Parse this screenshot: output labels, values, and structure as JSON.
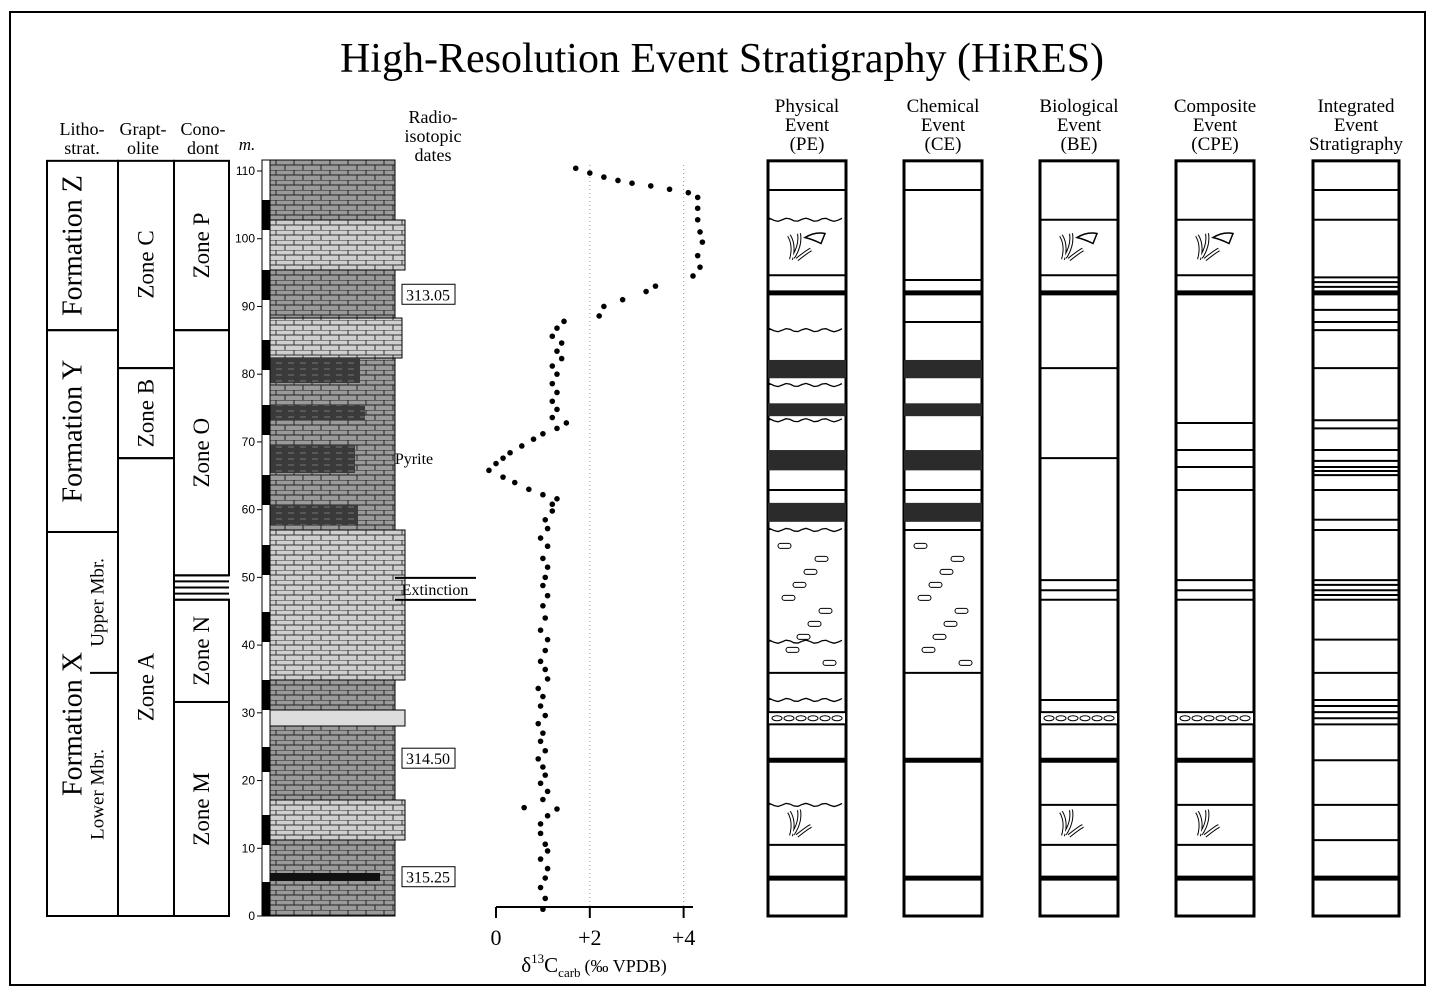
{
  "title": "High-Resolution Event Stratigraphy (HiRES)",
  "depth_axis": {
    "unit": "m.",
    "lim": [
      0,
      110
    ],
    "ticks": [
      0,
      10,
      20,
      30,
      40,
      50,
      60,
      70,
      80,
      90,
      100,
      110
    ],
    "section_top": 111.5
  },
  "lithostrat": {
    "header": [
      "Litho-",
      "strat."
    ],
    "units": [
      {
        "label": "Formation Z",
        "top": 111.5,
        "base": 86.5
      },
      {
        "label": "Formation Y",
        "top": 86.5,
        "base": 56.7
      },
      {
        "label": "Formation X",
        "top": 56.7,
        "base": 0,
        "members": [
          {
            "label": "Upper Mbr.",
            "top": 56.7,
            "base": 35.9
          },
          {
            "label": "Lower Mbr.",
            "top": 35.9,
            "base": 0
          }
        ]
      }
    ]
  },
  "graptolite": {
    "header": [
      "Grapt-",
      "olite"
    ],
    "zones": [
      {
        "label": "Zone C",
        "top": 111.5,
        "base": 80.9
      },
      {
        "label": "Zone B",
        "top": 80.9,
        "base": 67.6
      },
      {
        "label": "Zone A",
        "top": 67.6,
        "base": 0
      }
    ]
  },
  "conodont": {
    "header": [
      "Cono-",
      "dont"
    ],
    "zones": [
      {
        "label": "Zone P",
        "top": 111.5,
        "base": 86.5
      },
      {
        "label": "Zone O",
        "top": 86.5,
        "base": 50.3
      },
      {
        "label": "Zone N",
        "top": 46.7,
        "base": 31.6
      },
      {
        "label": "Zone M",
        "top": 31.6,
        "base": 0
      }
    ],
    "boundary_lines": [
      50.3,
      49.4,
      48.5,
      47.6,
      46.7
    ]
  },
  "radioisotopic_dates": {
    "header": [
      "Radio-",
      "isotopic",
      "dates"
    ],
    "dates": [
      {
        "label": "313.05",
        "depth": 91.8
      },
      {
        "label": "314.50",
        "depth": 23.3
      },
      {
        "label": "315.25",
        "depth": 5.8
      }
    ]
  },
  "annotations": [
    {
      "label": "Pyrite",
      "depth": 67.5
    },
    {
      "label": "Extinction",
      "depth": 48.3
    }
  ],
  "d13c": {
    "label": {
      "delta": "δ",
      "sup": "13",
      "main": "C",
      "sub": "carb",
      "units": "(‰ VPDB)"
    },
    "xlim": [
      0,
      4.2
    ],
    "xticks": [
      0,
      {
        "value": 2,
        "label": "+2"
      },
      {
        "value": 4,
        "label": "+4"
      }
    ],
    "grid": true,
    "depths": [
      110.4,
      109.7,
      109.1,
      108.6,
      108.2,
      107.8,
      107.3,
      106.8,
      106.1,
      104.5,
      102.8,
      101.0,
      99.5,
      97.5,
      95.8,
      94.5,
      93.0,
      92.2,
      91.0,
      90.0,
      88.6,
      87.8,
      86.8,
      85.6,
      84.6,
      83.4,
      82.3,
      81.2,
      80.0,
      78.6,
      77.3,
      76.0,
      74.8,
      73.6,
      72.8,
      72.0,
      71.2,
      70.4,
      69.4,
      68.4,
      67.6,
      66.8,
      65.8,
      64.8,
      64.0,
      63.0,
      62.2,
      61.6,
      60.8,
      59.8,
      58.5,
      57.2,
      55.8,
      54.6,
      52.8,
      51.5,
      50.0,
      48.8,
      47.3,
      45.8,
      44.0,
      42.2,
      40.8,
      39.2,
      37.6,
      36.4,
      35.0,
      33.6,
      32.4,
      31.0,
      29.6,
      28.4,
      27.0,
      25.8,
      24.4,
      23.2,
      22.0,
      20.8,
      19.6,
      18.4,
      17.2,
      16.0,
      15.8,
      14.8,
      13.6,
      12.2,
      10.6,
      9.6,
      8.4,
      7.0,
      5.6,
      4.2,
      2.6,
      1.0
    ],
    "values": [
      1.7,
      2.0,
      2.3,
      2.6,
      2.9,
      3.3,
      3.7,
      4.1,
      4.3,
      4.3,
      4.3,
      4.35,
      4.4,
      4.3,
      4.35,
      4.2,
      3.4,
      3.2,
      2.7,
      2.3,
      2.2,
      1.45,
      1.3,
      1.2,
      1.4,
      1.3,
      1.4,
      1.2,
      1.3,
      1.2,
      1.3,
      1.2,
      1.3,
      1.2,
      1.5,
      1.3,
      1.0,
      0.8,
      0.55,
      0.3,
      0.15,
      0.0,
      -0.15,
      0.15,
      0.4,
      0.7,
      1.0,
      1.3,
      1.2,
      1.2,
      1.05,
      1.1,
      0.95,
      1.1,
      1.0,
      1.1,
      1.05,
      1.0,
      1.1,
      1.0,
      1.05,
      0.95,
      1.1,
      1.05,
      0.95,
      1.05,
      1.1,
      0.9,
      1.0,
      0.95,
      1.05,
      0.9,
      1.0,
      0.95,
      1.05,
      0.9,
      1.0,
      1.05,
      0.95,
      1.1,
      1.0,
      0.6,
      1.3,
      1.1,
      0.95,
      0.95,
      1.05,
      1.1,
      0.95,
      1.1,
      1.05,
      0.95,
      1.05,
      1.0
    ]
  },
  "event_columns": [
    {
      "header": [
        "Physical",
        "Event",
        "(PE)"
      ],
      "lines": [
        107.2,
        94.6,
        62.9,
        35.9,
        10.5
      ],
      "thick": [
        92.0,
        23.0,
        5.6
      ],
      "wavy": [
        102.8,
        86.5,
        78.4,
        73.2,
        57.0,
        40.5,
        31.9,
        16.4
      ],
      "bands": [
        [
          82.1,
          79.4
        ],
        [
          75.7,
          73.8
        ],
        [
          68.8,
          65.8
        ],
        [
          61.0,
          58.2
        ]
      ],
      "clast_zone": [
        56.2,
        36.3
      ],
      "clast_beds": [
        [
          30.1,
          28.3
        ]
      ],
      "fossils": [
        99.0,
        13.9
      ],
      "horn_fossils": [
        99.0
      ]
    },
    {
      "header": [
        "Chemical",
        "Event",
        "(CE)"
      ],
      "lines": [
        107.2,
        93.9,
        87.7,
        62.9,
        57.0,
        35.9
      ],
      "thick": [
        92.0,
        23.0,
        5.6
      ],
      "wavy": [],
      "bands": [
        [
          82.1,
          79.4
        ],
        [
          75.7,
          73.8
        ],
        [
          68.8,
          65.8
        ],
        [
          61.0,
          58.2
        ]
      ],
      "clast_zone": [
        56.2,
        36.3
      ],
      "clast_beds": [],
      "fossils": [],
      "horn_fossils": []
    },
    {
      "header": [
        "Biological",
        "Event",
        "(BE)"
      ],
      "lines": [
        102.8,
        94.6,
        80.9,
        67.6,
        49.6,
        48.1,
        46.7,
        31.9,
        16.4,
        10.5
      ],
      "thick": [
        92.0,
        23.0,
        5.6
      ],
      "wavy": [],
      "bands": [],
      "clast_zone": [],
      "clast_beds": [
        [
          30.1,
          28.3
        ]
      ],
      "fossils": [
        99.0,
        13.9
      ],
      "horn_fossils": [
        99.0
      ]
    },
    {
      "header": [
        "Composite",
        "Event",
        "(CPE)"
      ],
      "lines": [
        102.8,
        94.6,
        72.8,
        68.8,
        66.3,
        62.9,
        49.6,
        48.1,
        46.7,
        16.4,
        10.5
      ],
      "thick": [
        92.0,
        23.0,
        5.6
      ],
      "wavy": [],
      "bands": [],
      "clast_zone": [],
      "clast_beds": [
        [
          30.1,
          28.3
        ]
      ],
      "fossils": [
        99.0,
        13.9
      ],
      "horn_fossils": [
        99.0
      ]
    },
    {
      "header": [
        "Integrated",
        "Event",
        "Stratigraphy"
      ],
      "lines": [
        107.2,
        102.8,
        94.3,
        93.6,
        92.9,
        89.5,
        87.7,
        86.5,
        80.9,
        73.2,
        72.0,
        68.8,
        67.2,
        66.3,
        65.7,
        65.1,
        62.9,
        58.5,
        57.0,
        49.6,
        48.9,
        48.1,
        47.4,
        46.7,
        40.8,
        35.9,
        31.9,
        31.0,
        30.1,
        29.2,
        28.3,
        23.0,
        16.4,
        11.2
      ],
      "thick": [
        92.0,
        5.6
      ],
      "wavy": [],
      "bands": [],
      "clast_zone": [],
      "clast_beds": [],
      "fossils": [],
      "horn_fossils": []
    }
  ]
}
